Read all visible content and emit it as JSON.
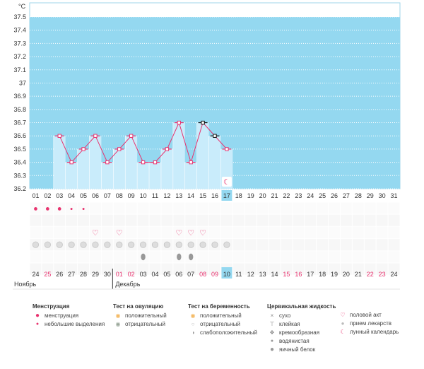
{
  "chart_data": {
    "type": "line",
    "ylabel": "°C",
    "ylim": [
      36.2,
      37.5
    ],
    "y_ticks": [
      "36.2",
      "36.3",
      "36.4",
      "36.5",
      "36.6",
      "36.7",
      "36.8",
      "36.9",
      "37",
      "37.1",
      "37.2",
      "37.3",
      "37.4",
      "37.5"
    ],
    "x": [
      "01",
      "02",
      "03",
      "04",
      "05",
      "06",
      "07",
      "08",
      "09",
      "10",
      "11",
      "12",
      "13",
      "14",
      "15",
      "16",
      "17",
      "18",
      "19",
      "20",
      "21",
      "22",
      "23",
      "24",
      "25",
      "26",
      "27",
      "28",
      "29",
      "30",
      "31"
    ],
    "series": [
      {
        "values": [
          null,
          null,
          36.6,
          36.4,
          36.5,
          36.6,
          36.4,
          36.5,
          36.6,
          36.4,
          36.4,
          36.5,
          36.7,
          36.4,
          36.7,
          36.6,
          36.5,
          null,
          null,
          null,
          null,
          null,
          null,
          null,
          null,
          null,
          null,
          null,
          null,
          null,
          null
        ]
      }
    ],
    "grid": true,
    "highlight_day": "17",
    "lunar_marker_day": "17"
  },
  "menstruation_days": [
    "01",
    "02",
    "03"
  ],
  "light_discharge_days": [
    "04",
    "05"
  ],
  "intercourse_days": [
    "06",
    "08",
    "13",
    "14",
    "15"
  ],
  "medication_days": [
    "01",
    "02",
    "03",
    "04",
    "05",
    "06",
    "07",
    "08",
    "09",
    "10",
    "11",
    "12",
    "13",
    "14",
    "15",
    "16",
    "17"
  ],
  "egg_white_days": [
    "10",
    "13",
    "14"
  ],
  "calendar_dates": [
    {
      "d": "24",
      "red": false
    },
    {
      "d": "25",
      "red": true
    },
    {
      "d": "26",
      "red": false
    },
    {
      "d": "27",
      "red": false
    },
    {
      "d": "28",
      "red": false
    },
    {
      "d": "29",
      "red": false
    },
    {
      "d": "30",
      "red": false
    },
    {
      "d": "01",
      "red": true
    },
    {
      "d": "02",
      "red": true
    },
    {
      "d": "03",
      "red": false
    },
    {
      "d": "04",
      "red": false
    },
    {
      "d": "05",
      "red": false
    },
    {
      "d": "06",
      "red": false
    },
    {
      "d": "07",
      "red": false
    },
    {
      "d": "08",
      "red": true
    },
    {
      "d": "09",
      "red": true
    },
    {
      "d": "10",
      "red": false
    },
    {
      "d": "11",
      "red": false
    },
    {
      "d": "12",
      "red": false
    },
    {
      "d": "13",
      "red": false
    },
    {
      "d": "14",
      "red": false
    },
    {
      "d": "15",
      "red": true
    },
    {
      "d": "16",
      "red": true
    },
    {
      "d": "17",
      "red": false
    },
    {
      "d": "18",
      "red": false
    },
    {
      "d": "19",
      "red": false
    },
    {
      "d": "20",
      "red": false
    },
    {
      "d": "21",
      "red": false
    },
    {
      "d": "22",
      "red": true
    },
    {
      "d": "23",
      "red": true
    },
    {
      "d": "24",
      "red": false
    }
  ],
  "months": {
    "left": "Ноябрь",
    "right": "Декабрь"
  },
  "colors": {
    "chart_bg": "#94d8f0",
    "fill": "#c9ecfb",
    "line": "#e8336f",
    "marker": "#e8336f",
    "today": "#94d8f0",
    "red_date": "#e8336f"
  },
  "legend": {
    "menstruation": {
      "title": "Менструация",
      "items": [
        {
          "icon": "drop-big",
          "label": "менструация"
        },
        {
          "icon": "drop-small",
          "label": "небольшие выделения"
        }
      ]
    },
    "ovulation": {
      "title": "Тест на овуляцию",
      "items": [
        {
          "icon": "positive",
          "label": "положительный"
        },
        {
          "icon": "negative",
          "label": "отрицательный"
        }
      ]
    },
    "pregnancy": {
      "title": "Тест на беременность",
      "items": [
        {
          "icon": "pos",
          "label": "положительный"
        },
        {
          "icon": "neg",
          "label": "отрицательный"
        },
        {
          "icon": "weak",
          "label": "слабоположительный"
        }
      ]
    },
    "cervical": {
      "title": "Цервикальная жидкость",
      "items": [
        {
          "icon": "×",
          "label": "сухо"
        },
        {
          "icon": "T",
          "label": "клейкая"
        },
        {
          "icon": "cream",
          "label": "кремообразная"
        },
        {
          "icon": "water",
          "label": "водянистая"
        },
        {
          "icon": "egg",
          "label": "яичный белок"
        }
      ]
    },
    "other": {
      "items": [
        {
          "icon": "heart",
          "label": "половой акт"
        },
        {
          "icon": "pill",
          "label": "прием лекарств"
        },
        {
          "icon": "moon",
          "label": "лунный календарь"
        }
      ]
    }
  }
}
